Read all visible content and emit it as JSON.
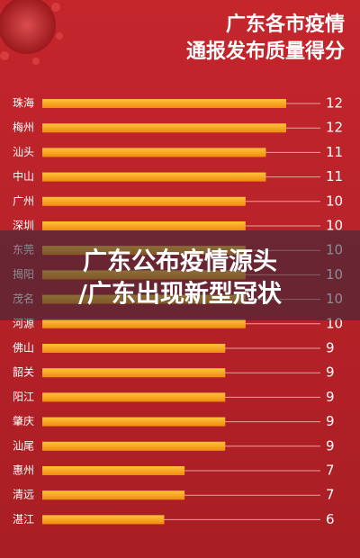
{
  "chart_data": {
    "type": "barh",
    "title": [
      "广东各市疫情",
      "通报发布质量得分"
    ],
    "categories": [
      "珠海",
      "梅州",
      "汕头",
      "中山",
      "广州",
      "深圳",
      "东莞",
      "揭阳",
      "茂名",
      "河源",
      "佛山",
      "韶关",
      "阳江",
      "肇庆",
      "汕尾",
      "惠州",
      "清远",
      "湛江"
    ],
    "values": [
      12,
      12,
      11,
      11,
      10,
      10,
      10,
      10,
      10,
      10,
      9,
      9,
      9,
      9,
      9,
      7,
      7,
      6
    ],
    "color": "#f7a21b"
  },
  "overlay_text": [
    "广东公布疫情源头",
    "/广东出现新型冠状"
  ]
}
